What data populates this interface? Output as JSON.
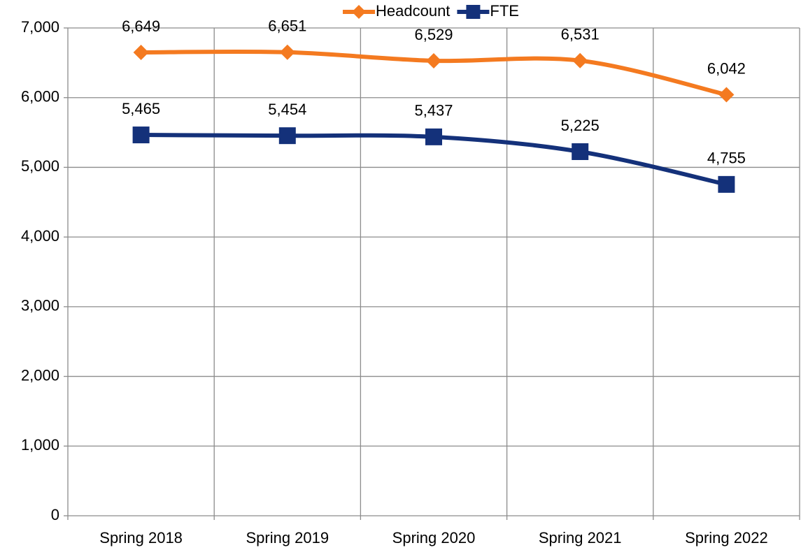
{
  "chart_data": {
    "type": "line",
    "categories": [
      "Spring 2018",
      "Spring 2019",
      "Spring 2020",
      "Spring 2021",
      "Spring 2022"
    ],
    "series": [
      {
        "name": "Headcount",
        "color": "#f47a20",
        "marker": "diamond",
        "values": [
          6649,
          6651,
          6529,
          6531,
          6042
        ],
        "value_labels": [
          "6,649",
          "6,651",
          "6,529",
          "6,531",
          "6,042"
        ]
      },
      {
        "name": "FTE",
        "color": "#14317a",
        "marker": "square",
        "values": [
          5465,
          5454,
          5437,
          5225,
          4755
        ],
        "value_labels": [
          "5,465",
          "5,454",
          "5,437",
          "5,225",
          "4,755"
        ]
      }
    ],
    "ylim": [
      0,
      7000
    ],
    "yticks": [
      0,
      {
        "value": 1000,
        "label": "1,000"
      },
      {
        "value": 2000,
        "label": "2,000"
      },
      {
        "value": 3000,
        "label": "3,000"
      },
      {
        "value": 4000,
        "label": "4,000"
      },
      {
        "value": 5000,
        "label": "5,000"
      },
      {
        "value": 6000,
        "label": "6,000"
      },
      {
        "value": 7000,
        "label": "7,000"
      }
    ],
    "grid": true,
    "smooth": true,
    "legend": "top"
  }
}
